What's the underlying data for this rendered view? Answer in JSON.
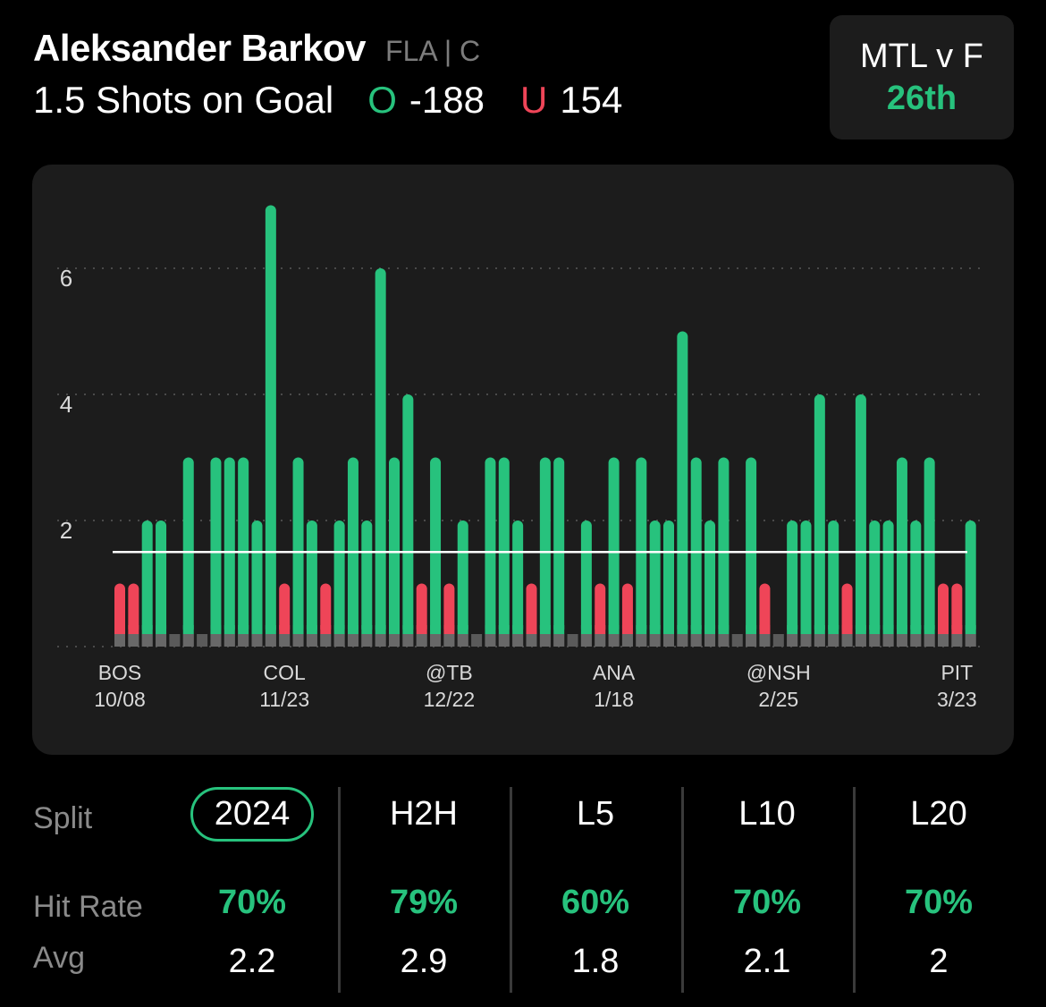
{
  "header": {
    "player_name": "Aleksander Barkov",
    "team_position": "FLA | C",
    "prop_line": "1.5 Shots on Goal",
    "over_symbol": "O",
    "over_odds": "-188",
    "under_symbol": "U",
    "under_odds": "154"
  },
  "matchup": {
    "label": "MTL v F",
    "rank": "26th"
  },
  "colors": {
    "over": "#27c27d",
    "under": "#ef4558",
    "card": "#1c1c1c"
  },
  "chart_data": {
    "type": "bar",
    "line_value": 1.5,
    "ylim": [
      0,
      7
    ],
    "yticks": [
      2,
      4,
      6
    ],
    "grid": "dotted horizontal",
    "values": [
      1,
      1,
      2,
      2,
      0,
      3,
      0,
      3,
      3,
      3,
      2,
      7,
      1,
      3,
      2,
      1,
      2,
      3,
      2,
      6,
      3,
      4,
      1,
      3,
      1,
      2,
      0,
      3,
      3,
      2,
      1,
      3,
      3,
      0,
      2,
      1,
      3,
      1,
      3,
      2,
      2,
      5,
      3,
      2,
      3,
      0,
      3,
      1,
      0,
      2,
      2,
      4,
      2,
      1,
      4,
      2,
      2,
      3,
      2,
      3,
      1,
      1,
      2
    ],
    "x_labels": [
      {
        "team": "BOS",
        "date": "10/08",
        "index": 0
      },
      {
        "team": "COL",
        "date": "11/23",
        "index": 12
      },
      {
        "team": "@TB",
        "date": "12/22",
        "index": 24
      },
      {
        "team": "ANA",
        "date": "1/18",
        "index": 36
      },
      {
        "team": "@NSH",
        "date": "2/25",
        "index": 48
      },
      {
        "team": "PIT",
        "date": "3/23",
        "index": 61
      }
    ]
  },
  "stats": {
    "split_label": "Split",
    "hit_rate_label": "Hit Rate",
    "avg_label": "Avg",
    "columns": [
      {
        "split": "2024",
        "hit_rate": "70%",
        "avg": "2.2"
      },
      {
        "split": "H2H",
        "hit_rate": "79%",
        "avg": "2.9"
      },
      {
        "split": "L5",
        "hit_rate": "60%",
        "avg": "1.8"
      },
      {
        "split": "L10",
        "hit_rate": "70%",
        "avg": "2.1"
      },
      {
        "split": "L20",
        "hit_rate": "70%",
        "avg": "2"
      }
    ]
  }
}
